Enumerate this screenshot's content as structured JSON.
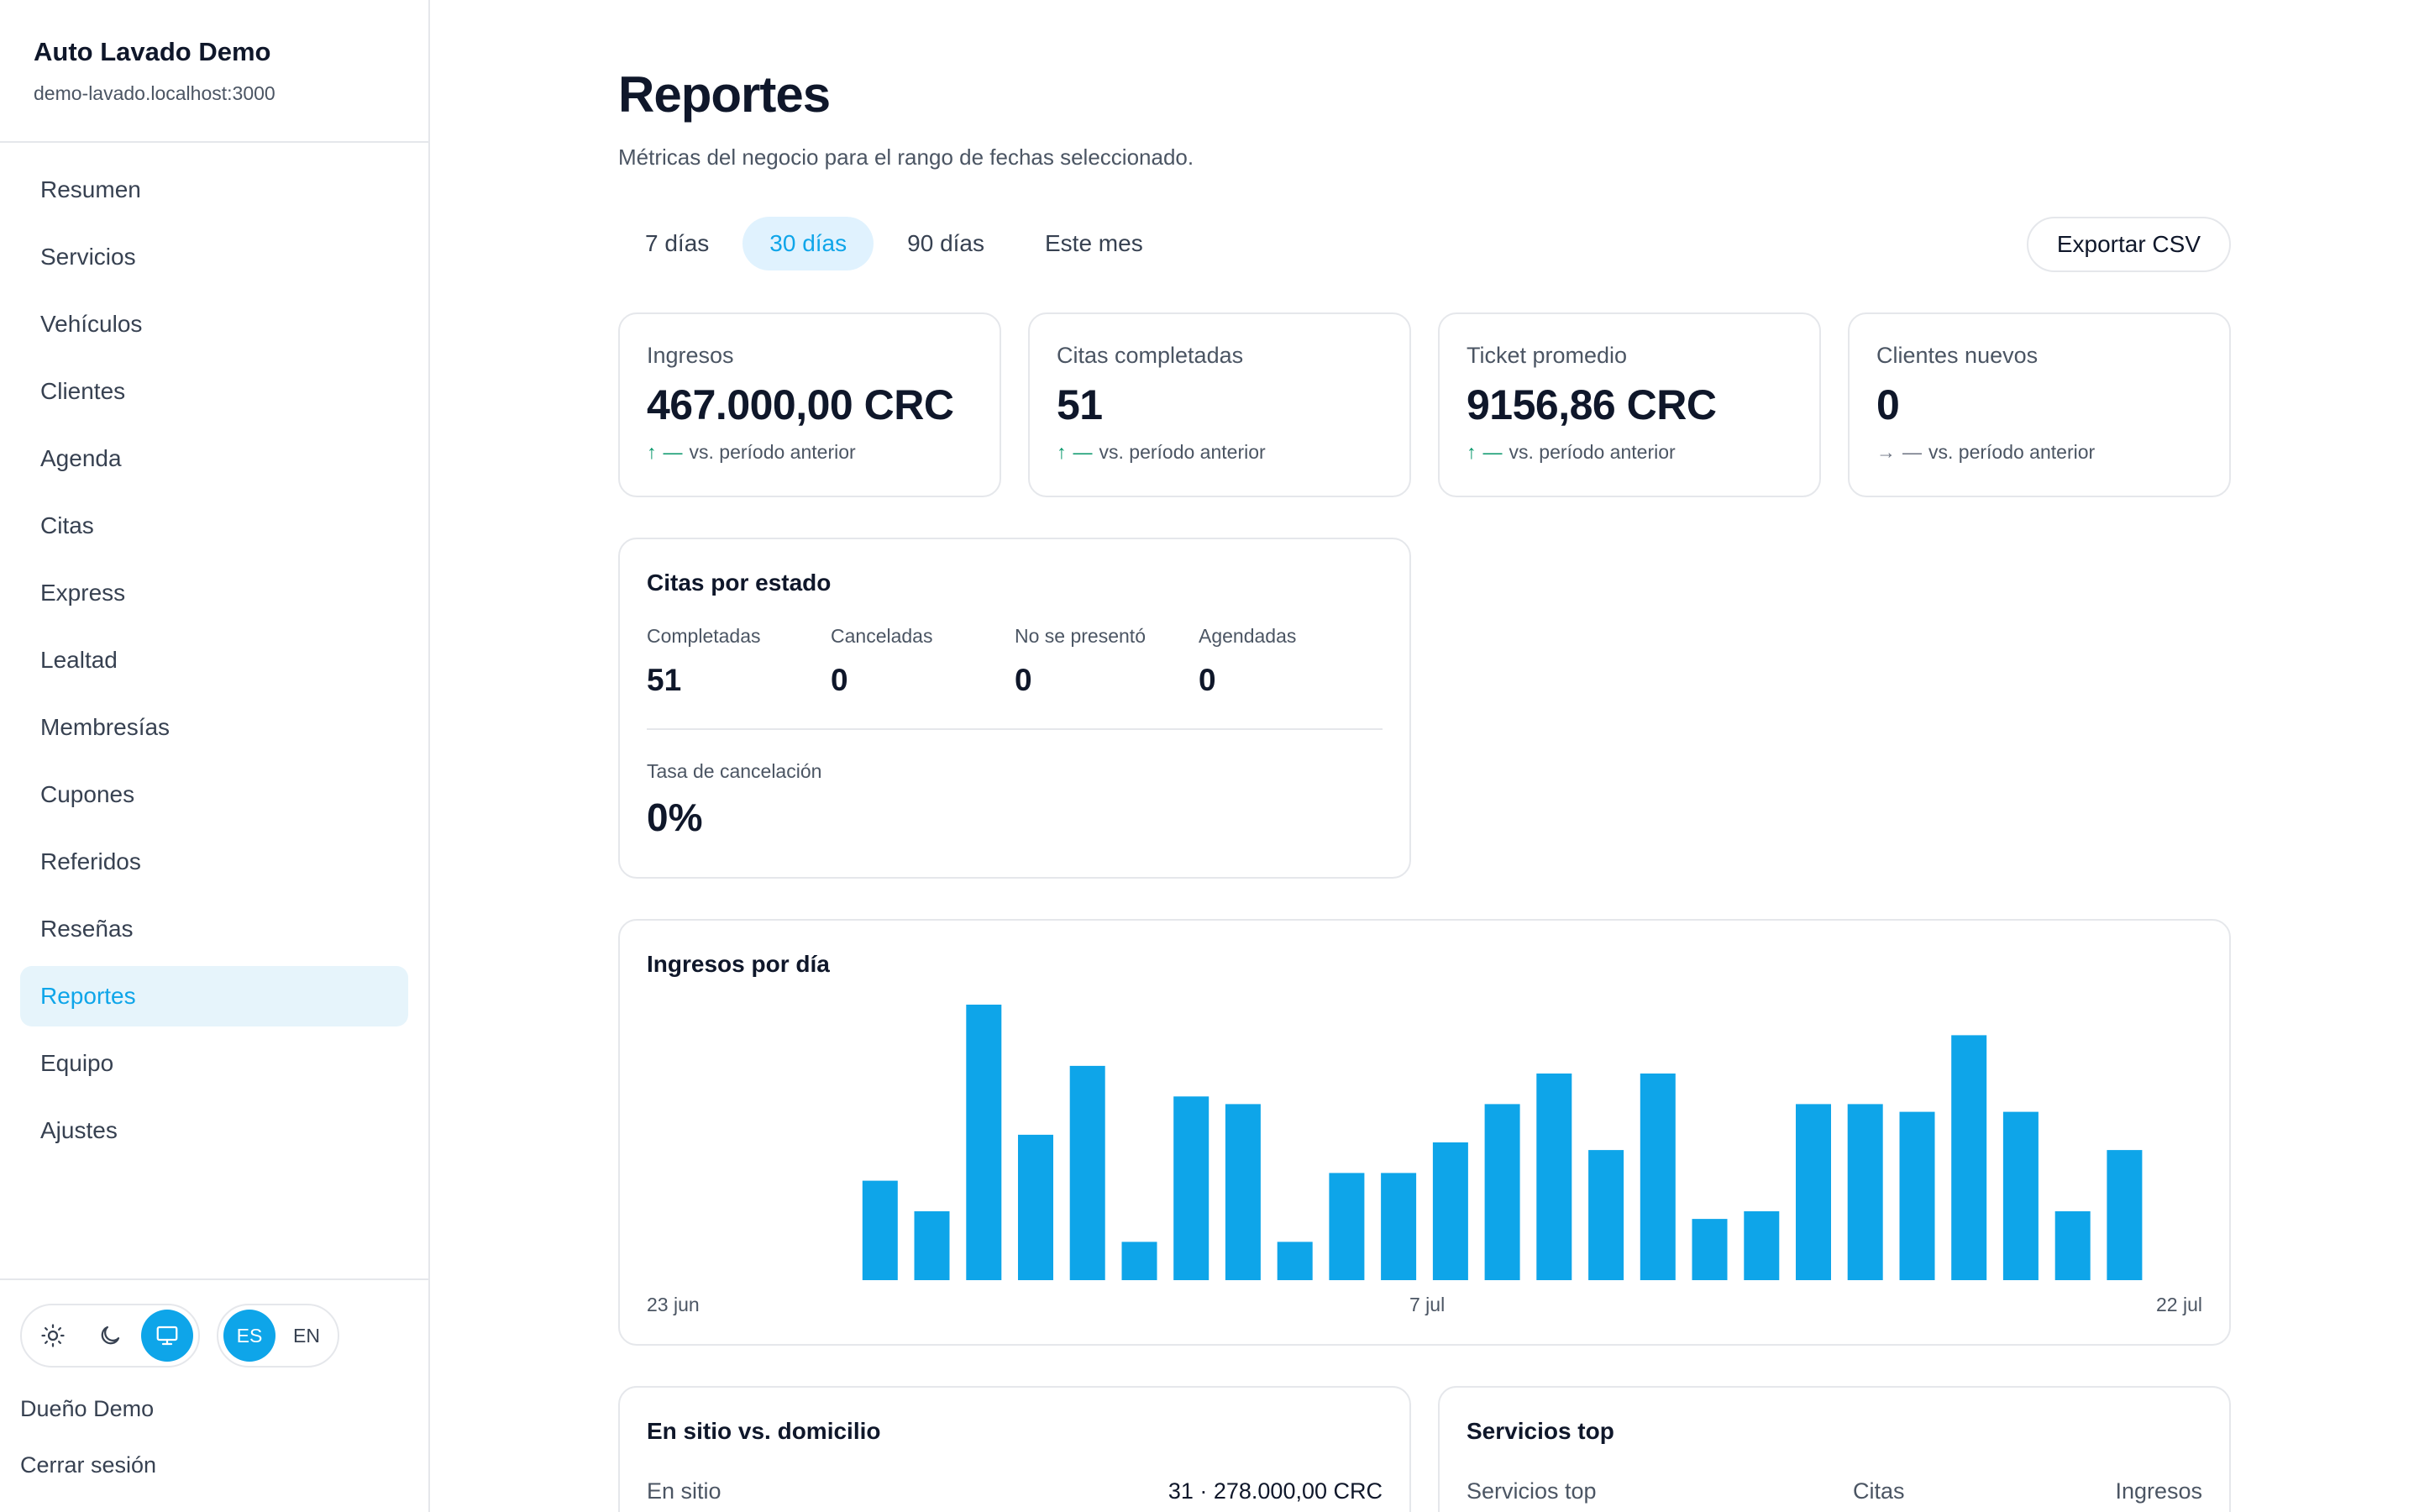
{
  "sidebar": {
    "brand_name": "Auto Lavado Demo",
    "brand_host": "demo-lavado.localhost:3000",
    "items": [
      {
        "label": "Resumen"
      },
      {
        "label": "Servicios"
      },
      {
        "label": "Vehículos"
      },
      {
        "label": "Clientes"
      },
      {
        "label": "Agenda"
      },
      {
        "label": "Citas"
      },
      {
        "label": "Express"
      },
      {
        "label": "Lealtad"
      },
      {
        "label": "Membresías"
      },
      {
        "label": "Cupones"
      },
      {
        "label": "Referidos"
      },
      {
        "label": "Reseñas"
      },
      {
        "label": "Reportes",
        "active": true
      },
      {
        "label": "Equipo"
      },
      {
        "label": "Ajustes"
      }
    ],
    "theme_icons": [
      "sun-icon",
      "moon-icon",
      "monitor-icon"
    ],
    "theme_active": "monitor",
    "languages": [
      "ES",
      "EN"
    ],
    "language_active": "ES",
    "user_name": "Dueño Demo",
    "logout_label": "Cerrar sesión"
  },
  "page": {
    "title": "Reportes",
    "subtitle": "Métricas del negocio para el rango de fechas seleccionado.",
    "tabs": [
      "7 días",
      "30 días",
      "90 días",
      "Este mes"
    ],
    "active_tab": "30 días",
    "export_label": "Exportar CSV"
  },
  "kpis": [
    {
      "label": "Ingresos",
      "value": "467.000,00 CRC",
      "arrow": "↑",
      "dash": "—",
      "compare": "vs. período anterior",
      "trend": "up"
    },
    {
      "label": "Citas completadas",
      "value": "51",
      "arrow": "↑",
      "dash": "—",
      "compare": "vs. período anterior",
      "trend": "up"
    },
    {
      "label": "Ticket promedio",
      "value": "9156,86 CRC",
      "arrow": "↑",
      "dash": "—",
      "compare": "vs. período anterior",
      "trend": "up"
    },
    {
      "label": "Clientes nuevos",
      "value": "0",
      "arrow": "→",
      "dash": "—",
      "compare": "vs. período anterior",
      "trend": "flat"
    }
  ],
  "status_card": {
    "title": "Citas por estado",
    "items": [
      {
        "label": "Completadas",
        "value": "51"
      },
      {
        "label": "Canceladas",
        "value": "0"
      },
      {
        "label": "No se presentó",
        "value": "0"
      },
      {
        "label": "Agendadas",
        "value": "0"
      }
    ],
    "rate_label": "Tasa de cancelación",
    "rate_value": "0%"
  },
  "chart_card": {
    "title": "Ingresos por día",
    "start_label": "23 jun",
    "mid_label": "7 jul",
    "end_label": "22 jul"
  },
  "chart_data": {
    "type": "bar",
    "title": "Ingresos por día",
    "xlabel": "",
    "ylabel": "",
    "x_tick_labels": [
      "23 jun",
      "7 jul",
      "22 jul"
    ],
    "categories": [
      "23 jun",
      "24 jun",
      "25 jun",
      "26 jun",
      "27 jun",
      "28 jun",
      "29 jun",
      "30 jun",
      "1 jul",
      "2 jul",
      "3 jul",
      "4 jul",
      "5 jul",
      "6 jul",
      "7 jul",
      "8 jul",
      "9 jul",
      "10 jul",
      "11 jul",
      "12 jul",
      "13 jul",
      "14 jul",
      "15 jul",
      "16 jul",
      "17 jul",
      "18 jul",
      "19 jul",
      "20 jul",
      "21 jul",
      "22 jul"
    ],
    "values": [
      0,
      0,
      0,
      0,
      13,
      9,
      36,
      19,
      28,
      5,
      24,
      23,
      5,
      14,
      14,
      18,
      23,
      27,
      17,
      27,
      8,
      9,
      23,
      23,
      22,
      32,
      22,
      9,
      17,
      0
    ],
    "grid": false,
    "legend": "none",
    "color": "#0ea5e9"
  },
  "bottom_left": {
    "title": "En sitio vs. domicilio",
    "row_label": "En sitio",
    "row_value": "31 · 278.000,00 CRC"
  },
  "bottom_right": {
    "title": "Servicios top",
    "col1": "Servicios top",
    "col2": "Citas",
    "col3": "Ingresos"
  }
}
